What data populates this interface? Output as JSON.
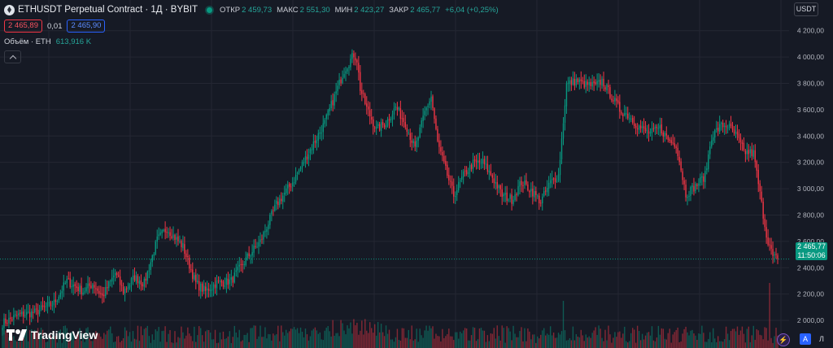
{
  "header": {
    "title": "ETHUSDT Perpetual Contract · 1Д · BYBIT",
    "ohlc": [
      {
        "label": "ОТКР",
        "value": "2 459,73"
      },
      {
        "label": "МАКС",
        "value": "2 551,30"
      },
      {
        "label": "МИН",
        "value": "2 423,27"
      },
      {
        "label": "ЗАКР",
        "value": "2 465,77"
      }
    ],
    "change": "+6,04 (+0,25%)"
  },
  "trade": {
    "sell": "2 465,89",
    "spread": "0,01",
    "buy": "2 465,90"
  },
  "volume": {
    "label": "Объём · ETH",
    "value": "613,916 K"
  },
  "currency": "USDT",
  "last_price": {
    "price": "2 465,77",
    "countdown": "11:50:06"
  },
  "logo": {
    "text": "TradingView"
  },
  "buttons": {
    "flash": "⚡",
    "auto": "A",
    "log": "Л"
  },
  "colors": {
    "up": "#089981",
    "down": "#f23645",
    "bg": "#161a25",
    "grid": "#242733"
  },
  "chart_data": {
    "type": "candlestick",
    "y_ticks": [
      "4 200,00",
      "4 000,00",
      "3 800,00",
      "3 600,00",
      "3 400,00",
      "3 200,00",
      "3 000,00",
      "2 800,00",
      "2 600,00",
      "2 400,00",
      "2 200,00",
      "2 000,00"
    ],
    "y_tick_values": [
      4200,
      4000,
      3800,
      3600,
      3400,
      3200,
      3000,
      2800,
      2600,
      2400,
      2200,
      2000
    ],
    "ylim": [
      1920,
      4260
    ],
    "anchors": [
      [
        0,
        1980
      ],
      [
        10,
        2040
      ],
      [
        20,
        2060
      ],
      [
        32,
        2130
      ],
      [
        40,
        2300
      ],
      [
        50,
        2220
      ],
      [
        56,
        2280
      ],
      [
        62,
        2180
      ],
      [
        70,
        2360
      ],
      [
        75,
        2220
      ],
      [
        82,
        2330
      ],
      [
        88,
        2280
      ],
      [
        96,
        2610
      ],
      [
        102,
        2700
      ],
      [
        112,
        2560
      ],
      [
        120,
        2280
      ],
      [
        126,
        2220
      ],
      [
        132,
        2280
      ],
      [
        142,
        2300
      ],
      [
        152,
        2480
      ],
      [
        160,
        2600
      ],
      [
        170,
        2880
      ],
      [
        180,
        3050
      ],
      [
        192,
        3320
      ],
      [
        200,
        3500
      ],
      [
        206,
        3700
      ],
      [
        212,
        3900
      ],
      [
        218,
        4020
      ],
      [
        220,
        3980
      ],
      [
        222,
        3760
      ],
      [
        226,
        3610
      ],
      [
        232,
        3450
      ],
      [
        238,
        3500
      ],
      [
        244,
        3620
      ],
      [
        250,
        3500
      ],
      [
        256,
        3300
      ],
      [
        262,
        3580
      ],
      [
        266,
        3700
      ],
      [
        270,
        3350
      ],
      [
        275,
        3140
      ],
      [
        280,
        2950
      ],
      [
        286,
        3100
      ],
      [
        292,
        3190
      ],
      [
        298,
        3200
      ],
      [
        304,
        3090
      ],
      [
        310,
        2950
      ],
      [
        316,
        2920
      ],
      [
        322,
        3050
      ],
      [
        328,
        2990
      ],
      [
        334,
        2900
      ],
      [
        340,
        3050
      ],
      [
        345,
        3100
      ],
      [
        350,
        3790
      ],
      [
        356,
        3820
      ],
      [
        362,
        3790
      ],
      [
        368,
        3780
      ],
      [
        372,
        3820
      ],
      [
        378,
        3700
      ],
      [
        383,
        3600
      ],
      [
        388,
        3560
      ],
      [
        394,
        3480
      ],
      [
        398,
        3440
      ],
      [
        402,
        3420
      ],
      [
        408,
        3460
      ],
      [
        414,
        3360
      ],
      [
        418,
        3340
      ],
      [
        424,
        2960
      ],
      [
        430,
        3020
      ],
      [
        436,
        3100
      ],
      [
        440,
        3400
      ],
      [
        446,
        3480
      ],
      [
        450,
        3480
      ],
      [
        456,
        3390
      ],
      [
        460,
        3280
      ],
      [
        466,
        3270
      ],
      [
        470,
        2960
      ],
      [
        474,
        2650
      ],
      [
        478,
        2480
      ],
      [
        481,
        2466
      ]
    ],
    "volume_heights": "relative"
  }
}
